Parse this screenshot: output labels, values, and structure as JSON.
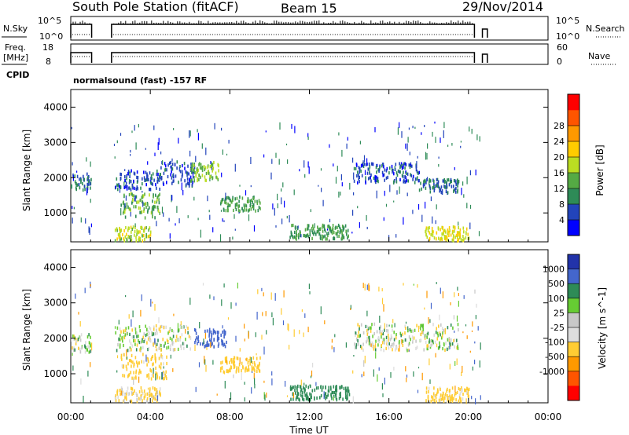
{
  "header": {
    "station": "South Pole Station (fitACF)",
    "beam": "Beam 15",
    "date": "29/Nov/2014"
  },
  "params": {
    "nsky_label": "N.Sky",
    "nsky_ticks": [
      "10^5",
      "10^0"
    ],
    "nsearch_label": "N.Search",
    "nsearch_ticks": [
      "10^5",
      "10^0"
    ],
    "freq_label": "Freq.",
    "freq_unit": "[MHz]",
    "freq_ticks": [
      "18",
      "8"
    ],
    "nave_label": "Nave",
    "nave_ticks": [
      "60",
      "0"
    ],
    "cpid_label": "CPID",
    "cpid_text": "normalsound (fast) -157 RF"
  },
  "colors": {
    "power": [
      "#0000ff",
      "#2244bb",
      "#2e8b57",
      "#55aa44",
      "#bbdd22",
      "#ffcc00",
      "#ff9900",
      "#ff5500",
      "#ff0000"
    ],
    "velocity": [
      "#2233aa",
      "#4466cc",
      "#2e8b57",
      "#66cc33",
      "#c8c8c8",
      "#dddddd",
      "#ffcc33",
      "#ff9900",
      "#ff5500",
      "#ff0000"
    ]
  },
  "chart_data": [
    {
      "type": "heatmap",
      "xlabel": "Time UT",
      "ylabel": "Slant Range [km]",
      "xlim": [
        0,
        24
      ],
      "ylim": [
        180,
        4500
      ],
      "x_ticks": [
        "00:00",
        "04:00",
        "08:00",
        "12:00",
        "16:00",
        "20:00",
        "00:00"
      ],
      "y_ticks": [
        1000,
        2000,
        3000,
        4000
      ],
      "colorbar": {
        "label": "Power [dB]",
        "ticks": [
          "4",
          "8",
          "12",
          "16",
          "20",
          "24",
          "28"
        ]
      },
      "echo_regions": [
        {
          "t0": 0.0,
          "t1": 1.0,
          "r0": 1650,
          "r1": 2150,
          "value": 8
        },
        {
          "t0": 2.2,
          "t1": 4.5,
          "r0": 1700,
          "r1": 2250,
          "value": 6
        },
        {
          "t0": 4.5,
          "t1": 6.2,
          "r0": 1800,
          "r1": 2500,
          "value": 6
        },
        {
          "t0": 6.0,
          "t1": 7.5,
          "r0": 1950,
          "r1": 2500,
          "value": 16
        },
        {
          "t0": 2.5,
          "t1": 4.5,
          "r0": 900,
          "r1": 1600,
          "value": 14
        },
        {
          "t0": 7.5,
          "t1": 9.5,
          "r0": 1100,
          "r1": 1500,
          "value": 12
        },
        {
          "t0": 2.2,
          "t1": 4.0,
          "r0": 250,
          "r1": 650,
          "value": 18
        },
        {
          "t0": 11.0,
          "t1": 14.0,
          "r0": 300,
          "r1": 700,
          "value": 12
        },
        {
          "t0": 14.2,
          "t1": 17.5,
          "r0": 1900,
          "r1": 2450,
          "value": 6
        },
        {
          "t0": 17.5,
          "t1": 19.5,
          "r0": 1600,
          "r1": 2000,
          "value": 8
        },
        {
          "t0": 17.8,
          "t1": 20.0,
          "r0": 250,
          "r1": 650,
          "value": 20
        }
      ]
    },
    {
      "type": "heatmap",
      "xlabel": "Time UT",
      "ylabel": "Slant Range [km]",
      "xlim": [
        0,
        24
      ],
      "ylim": [
        180,
        4500
      ],
      "x_ticks": [
        "00:00",
        "04:00",
        "08:00",
        "12:00",
        "16:00",
        "20:00",
        "00:00"
      ],
      "y_ticks": [
        1000,
        2000,
        3000,
        4000
      ],
      "colorbar": {
        "label": "Velocity [m s^-1]",
        "ticks": [
          "1000",
          "500",
          "100",
          "25",
          "-25",
          "-100",
          "-500",
          "-1000"
        ]
      },
      "echo_regions": [
        {
          "t0": 0.0,
          "t1": 1.0,
          "r0": 1650,
          "r1": 2150,
          "value": 0
        },
        {
          "t0": 2.2,
          "t1": 6.0,
          "r0": 1700,
          "r1": 2400,
          "value": 0
        },
        {
          "t0": 6.2,
          "t1": 7.8,
          "r0": 1800,
          "r1": 2300,
          "value": 700
        },
        {
          "t0": 2.5,
          "t1": 4.8,
          "r0": 900,
          "r1": 1600,
          "value": -200
        },
        {
          "t0": 7.5,
          "t1": 9.5,
          "r0": 1100,
          "r1": 1500,
          "value": -250
        },
        {
          "t0": 2.2,
          "t1": 4.5,
          "r0": 250,
          "r1": 650,
          "value": -150
        },
        {
          "t0": 11.0,
          "t1": 14.0,
          "r0": 300,
          "r1": 700,
          "value": 300
        },
        {
          "t0": 14.2,
          "t1": 19.5,
          "r0": 1700,
          "r1": 2450,
          "value": 0
        },
        {
          "t0": 17.8,
          "t1": 20.0,
          "r0": 250,
          "r1": 650,
          "value": -200
        }
      ]
    }
  ]
}
